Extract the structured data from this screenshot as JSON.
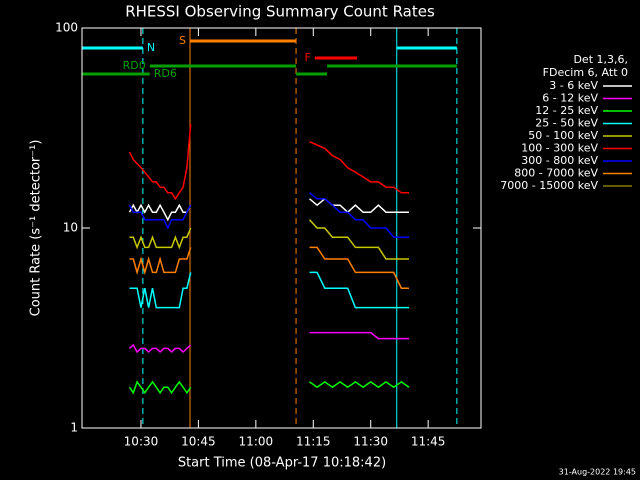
{
  "chart_data": {
    "type": "line",
    "title": "RHESSI Observing Summary Count Rates",
    "xlabel": "Start Time (08-Apr-17 10:18:42)",
    "ylabel": "Count Rate (s⁻¹ detector⁻¹)",
    "footer": "31-Aug-2022 19:45",
    "legend_header": [
      "Det 1,3,6,",
      "FDecim 6, Att 0"
    ],
    "ylog": true,
    "xlim": [
      14.6,
      118.8
    ],
    "ylim": [
      1,
      100
    ],
    "yticks": [
      1,
      10,
      100
    ],
    "xticks": [
      {
        "value": 30,
        "label": "10:30"
      },
      {
        "value": 45,
        "label": "10:45"
      },
      {
        "value": 60,
        "label": "11:00"
      },
      {
        "value": 75,
        "label": "11:15"
      },
      {
        "value": 90,
        "label": "11:30"
      },
      {
        "value": 105,
        "label": "11:45"
      }
    ],
    "x": [
      27,
      28,
      29,
      30,
      31,
      32,
      33,
      34,
      35,
      36,
      37,
      38,
      39,
      40,
      41,
      42,
      43,
      58,
      74,
      76,
      78,
      80,
      82,
      84,
      86,
      88,
      90,
      92,
      94,
      96,
      98,
      100
    ],
    "series": [
      {
        "name": "3 - 6 keV",
        "color": "#ffffff",
        "values": [
          12,
          13,
          12,
          13,
          12,
          13,
          12,
          12,
          13,
          12,
          11,
          12,
          12,
          13,
          12,
          12,
          13,
          null,
          14,
          13,
          14,
          13,
          13,
          12,
          13,
          12,
          12,
          13,
          12,
          12,
          12,
          12
        ]
      },
      {
        "name": "6 - 12 keV",
        "color": "#ff00ff",
        "values": [
          2.5,
          2.6,
          2.4,
          2.5,
          2.5,
          2.4,
          2.5,
          2.5,
          2.4,
          2.5,
          2.5,
          2.4,
          2.5,
          2.5,
          2.4,
          2.5,
          2.6,
          null,
          3,
          3,
          3,
          3,
          3,
          3,
          3,
          3,
          3,
          2.8,
          2.8,
          2.8,
          2.8,
          2.8
        ]
      },
      {
        "name": "12 - 25 keV",
        "color": "#00ff00",
        "values": [
          1.6,
          1.5,
          1.7,
          1.6,
          1.5,
          1.6,
          1.7,
          1.6,
          1.5,
          1.6,
          1.6,
          1.5,
          1.6,
          1.7,
          1.6,
          1.5,
          1.6,
          null,
          1.7,
          1.6,
          1.7,
          1.6,
          1.7,
          1.6,
          1.7,
          1.6,
          1.7,
          1.6,
          1.7,
          1.6,
          1.7,
          1.6
        ]
      },
      {
        "name": "25 - 50 keV",
        "color": "#00ffff",
        "values": [
          5,
          5,
          5,
          4,
          5,
          4,
          5,
          4,
          4,
          4,
          4,
          4,
          4,
          4,
          5,
          5,
          6,
          null,
          6,
          6,
          5,
          5,
          5,
          5,
          4,
          4,
          4,
          4,
          4,
          4,
          4,
          4
        ]
      },
      {
        "name": "50 - 100 keV",
        "color": "#c8c800",
        "values": [
          9,
          9,
          8,
          9,
          8,
          8,
          9,
          8,
          8,
          8,
          8,
          8,
          9,
          8,
          9,
          9,
          10,
          null,
          11,
          10,
          10,
          9,
          9,
          9,
          8,
          8,
          8,
          8,
          7,
          7,
          7,
          7
        ]
      },
      {
        "name": "100 - 300 keV",
        "color": "#ff0000",
        "values": [
          24,
          22,
          21,
          20,
          19,
          18,
          17,
          17,
          16,
          16,
          15,
          15,
          14,
          15,
          16,
          20,
          33,
          null,
          27,
          26,
          25,
          23,
          22,
          20,
          19,
          18,
          17,
          17,
          16,
          16,
          15,
          15
        ]
      },
      {
        "name": "300 - 800 keV",
        "color": "#0000ff",
        "values": [
          13,
          12,
          12,
          12,
          11,
          11,
          11,
          11,
          11,
          11,
          10,
          11,
          11,
          11,
          11,
          12,
          13,
          null,
          15,
          14,
          14,
          13,
          12,
          12,
          11,
          11,
          10,
          10,
          10,
          9,
          9,
          9
        ]
      },
      {
        "name": "800 - 7000 keV",
        "color": "#ff8000",
        "values": [
          7,
          7,
          6,
          7,
          6,
          7,
          6,
          6,
          7,
          6,
          6,
          6,
          6,
          7,
          7,
          7,
          8,
          null,
          8,
          8,
          7,
          7,
          7,
          7,
          6,
          6,
          6,
          6,
          6,
          6,
          5,
          5
        ]
      },
      {
        "name": "7000 - 15000 keV",
        "color": "#808000",
        "values": [
          null,
          null,
          null,
          null,
          null,
          null,
          null,
          null,
          null,
          null,
          null,
          null,
          null,
          null,
          null,
          null,
          null,
          null,
          null,
          null,
          null,
          null,
          null,
          null,
          null,
          null,
          null,
          null,
          null,
          null,
          null,
          null
        ]
      }
    ],
    "annotations": [
      {
        "label": "N",
        "color": "#00ffff",
        "spans": [
          [
            14.6,
            30.5
          ],
          [
            96.8,
            112.5
          ]
        ]
      },
      {
        "label": "S",
        "color": "#ff8000",
        "spans": [
          [
            42.8,
            70.5
          ]
        ]
      },
      {
        "label": "F",
        "color": "#ff0000",
        "spans": [
          [
            75.4,
            86.4
          ]
        ]
      },
      {
        "label": "RD0",
        "color": "#00a000",
        "spans": [
          [
            32.3,
            70.5
          ],
          [
            78.6,
            112.5
          ]
        ]
      },
      {
        "label": "RD6",
        "color": "#00a000",
        "spans": [
          [
            14.6,
            32.3
          ],
          [
            70.5,
            78.6
          ]
        ]
      }
    ],
    "vlines": [
      {
        "x": 30.5,
        "color": "#00ffff",
        "dashed": true
      },
      {
        "x": 96.8,
        "color": "#00ffff",
        "dashed": false
      },
      {
        "x": 112.5,
        "color": "#00ffff",
        "dashed": true
      },
      {
        "x": 42.8,
        "color": "#ff8000",
        "dashed": false
      },
      {
        "x": 70.5,
        "color": "#ff8000",
        "dashed": true
      }
    ]
  }
}
